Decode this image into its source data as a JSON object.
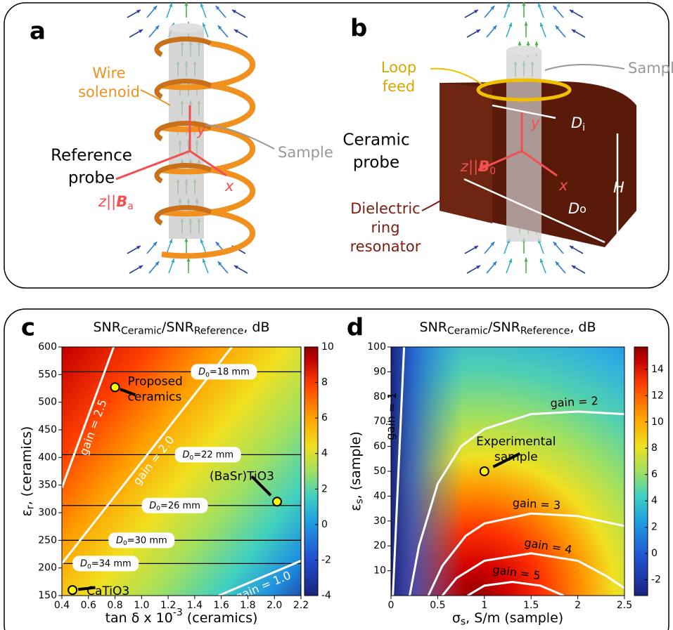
{
  "panel_a": {
    "letter": "a",
    "solenoid": [
      "Wire",
      "solenoid"
    ],
    "probe": [
      "Reference",
      "probe"
    ],
    "sample": "Sample",
    "z_axis": [
      "z||",
      "B",
      "a"
    ],
    "y_axis": "y",
    "x_axis": "x"
  },
  "panel_b": {
    "letter": "b",
    "feed": [
      "Loop",
      "feed"
    ],
    "sample": "Sample",
    "probe": [
      "Ceramic",
      "probe"
    ],
    "z_axis": [
      "z||",
      "B",
      "0"
    ],
    "y_axis": "y",
    "x_axis": "x",
    "inner_d": [
      "D",
      "i"
    ],
    "height": "H",
    "outer_d": [
      "D",
      "o"
    ],
    "resonator": [
      "Dielectric",
      "ring",
      "resonator"
    ]
  },
  "chart_data": [
    {
      "type": "heatmap",
      "panel": "c",
      "title": [
        "SNR",
        "Ceramic",
        "/SNR",
        "Reference",
        ", dB"
      ],
      "xlabel": [
        "tan δ x 10",
        "-3",
        " (ceramics)"
      ],
      "ylabel": [
        "ε",
        "r",
        ", (ceramics)"
      ],
      "xlim": [
        0.4,
        2.2
      ],
      "xticks": [
        0.4,
        0.6,
        0.8,
        {
          "value": 1,
          "label": "1.0"
        },
        1.2,
        1.4,
        1.6,
        1.8,
        {
          "value": 2,
          "label": "2.0"
        },
        2.2
      ],
      "ylim": [
        150,
        600
      ],
      "yticks": [
        150,
        200,
        250,
        300,
        350,
        400,
        450,
        500,
        550,
        600
      ],
      "clim": [
        -4,
        10
      ],
      "cticks": [
        -4,
        -2,
        0,
        2,
        4,
        6,
        8,
        10
      ],
      "contours": [
        {
          "name": "gain = 2.5",
          "color": "#ffffff",
          "x": [
            0.4,
            0.79
          ],
          "y": [
            345,
            600
          ]
        },
        {
          "name": "gain = 2.0",
          "color": "#ffffff",
          "x": [
            0.4,
            1.68
          ],
          "y": [
            208,
            600
          ]
        },
        {
          "name": "gain = 1.0",
          "color": "#ffffff",
          "x": [
            1.58,
            2.2
          ],
          "y": [
            150,
            213
          ]
        }
      ],
      "hlines": [
        {
          "y": 555,
          "label": [
            "D",
            "0",
            "=18 mm"
          ]
        },
        {
          "y": 405,
          "label": [
            "D",
            "0",
            "=22 mm"
          ]
        },
        {
          "y": 313,
          "label": [
            "D",
            "0",
            "=26 mm"
          ]
        },
        {
          "y": 250,
          "label": [
            "D",
            "0",
            "=30 mm"
          ]
        },
        {
          "y": 208,
          "label": [
            "D",
            "0",
            "=34 mm"
          ]
        }
      ],
      "points": [
        {
          "name": [
            "Proposed",
            "ceramics"
          ],
          "x": 0.8,
          "y": 527,
          "color": "#ffff00"
        },
        {
          "name": [
            "(BaSr)TiO3"
          ],
          "x": 2.02,
          "y": 320,
          "color": "#ffff00"
        },
        {
          "name": [
            "CaTiO3"
          ],
          "x": 0.48,
          "y": 160,
          "color": "#ffff00"
        }
      ]
    },
    {
      "type": "heatmap",
      "panel": "d",
      "title": [
        "SNR",
        "Ceramic",
        "/SNR",
        "Reference",
        ", dB"
      ],
      "xlabel": [
        "σ",
        "s",
        ", S/m (sample)"
      ],
      "ylabel": [
        "ε",
        "s",
        ", (sample)"
      ],
      "xlim": [
        0,
        2.5
      ],
      "xticks": [
        0,
        0.5,
        1,
        1.5,
        2,
        2.5
      ],
      "ylim": [
        0,
        100
      ],
      "yticks": [
        10,
        20,
        30,
        40,
        50,
        60,
        70,
        80,
        90,
        100
      ],
      "clim": [
        -3.2,
        15.7
      ],
      "cticks": [
        -2,
        0,
        2,
        4,
        6,
        8,
        10,
        12,
        14
      ],
      "contours": [
        {
          "name": "gain = 1",
          "color": "#ffffff",
          "x": [
            0.02,
            0.05,
            0.08,
            0.11,
            0.14
          ],
          "y": [
            0,
            25,
            50,
            75,
            100
          ]
        },
        {
          "name": "gain = 2",
          "color": "#ffffff",
          "x": [
            0.2,
            0.3,
            0.5,
            0.75,
            1.0,
            1.5,
            2.0,
            2.5
          ],
          "y": [
            0,
            20,
            45,
            60,
            67,
            73,
            74,
            73
          ]
        },
        {
          "name": "gain = 3",
          "color": "#ffffff",
          "x": [
            0.4,
            0.55,
            0.8,
            1.0,
            1.5,
            2.0,
            2.5
          ],
          "y": [
            0,
            12,
            24,
            29,
            33,
            32,
            28
          ]
        },
        {
          "name": "gain = 4",
          "color": "#ffffff",
          "x": [
            0.55,
            0.7,
            1.0,
            1.5,
            2.0,
            2.3,
            2.5
          ],
          "y": [
            0,
            7,
            14,
            17,
            14,
            8,
            3
          ]
        },
        {
          "name": "gain = 5",
          "color": "#ffffff",
          "x": [
            0.82,
            1.0,
            1.3,
            1.6,
            1.85
          ],
          "y": [
            0,
            4,
            5.5,
            4,
            0
          ]
        }
      ],
      "points": [
        {
          "name": [
            "Experimental",
            "sample"
          ],
          "x": 1,
          "y": 50,
          "color": "#ffff00"
        }
      ]
    }
  ]
}
